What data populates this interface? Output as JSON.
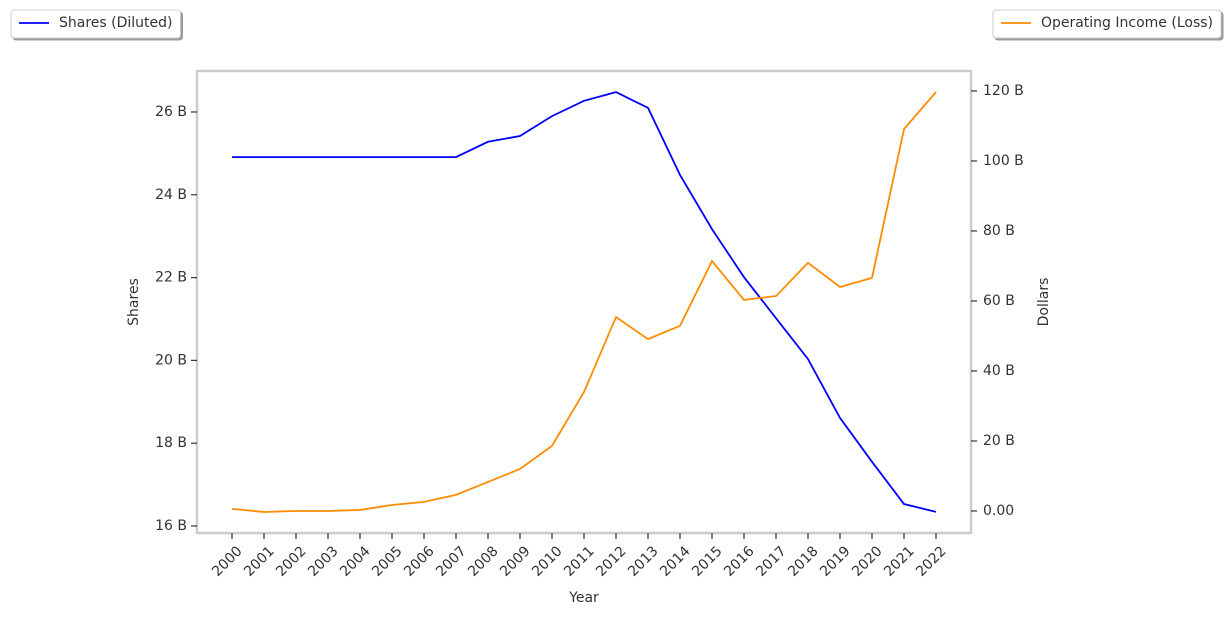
{
  "chart_data": {
    "type": "line",
    "x_label": "Year",
    "y_label": "Shares",
    "y2_label": "Dollars",
    "categories": [
      "2000",
      "2001",
      "2002",
      "2003",
      "2004",
      "2005",
      "2006",
      "2007",
      "2008",
      "2009",
      "2010",
      "2011",
      "2012",
      "2013",
      "2014",
      "2015",
      "2016",
      "2017",
      "2018",
      "2019",
      "2020",
      "2021",
      "2022"
    ],
    "series": [
      {
        "name": "Shares (Diluted)",
        "color": "#0000ff",
        "axis": "y",
        "values": [
          24.91,
          24.91,
          24.91,
          24.91,
          24.91,
          24.91,
          24.91,
          24.91,
          25.28,
          25.42,
          25.9,
          26.27,
          26.48,
          26.1,
          24.48,
          23.17,
          22.01,
          21.02,
          20.03,
          18.61,
          17.55,
          16.53,
          16.34
        ]
      },
      {
        "name": "Operating Income (Loss)",
        "color": "#ff8c00",
        "axis": "y2",
        "values": [
          0.6,
          -0.3,
          0,
          0,
          0.3,
          1.7,
          2.6,
          4.6,
          8.3,
          12.0,
          18.6,
          34.0,
          55.4,
          49.1,
          52.9,
          71.4,
          60.3,
          61.4,
          70.9,
          64.0,
          66.6,
          109.1,
          119.7
        ]
      }
    ],
    "ylim": [
      15.83,
      26.99
    ],
    "yticks": [
      {
        "value": 16,
        "label": "16 B"
      },
      {
        "value": 18,
        "label": "18 B"
      },
      {
        "value": 20,
        "label": "20 B"
      },
      {
        "value": 22,
        "label": "22 B"
      },
      {
        "value": 24,
        "label": "24 B"
      },
      {
        "value": 26,
        "label": "26 B"
      }
    ],
    "y2lim": [
      -6.29,
      125.7
    ],
    "y2ticks": [
      {
        "value": 0,
        "label": "0.00"
      },
      {
        "value": 20,
        "label": "20 B"
      },
      {
        "value": 40,
        "label": "40 B"
      },
      {
        "value": 60,
        "label": "60 B"
      },
      {
        "value": 80,
        "label": "80 B"
      },
      {
        "value": 100,
        "label": "100 B"
      },
      {
        "value": 120,
        "label": "120 B"
      }
    ]
  }
}
